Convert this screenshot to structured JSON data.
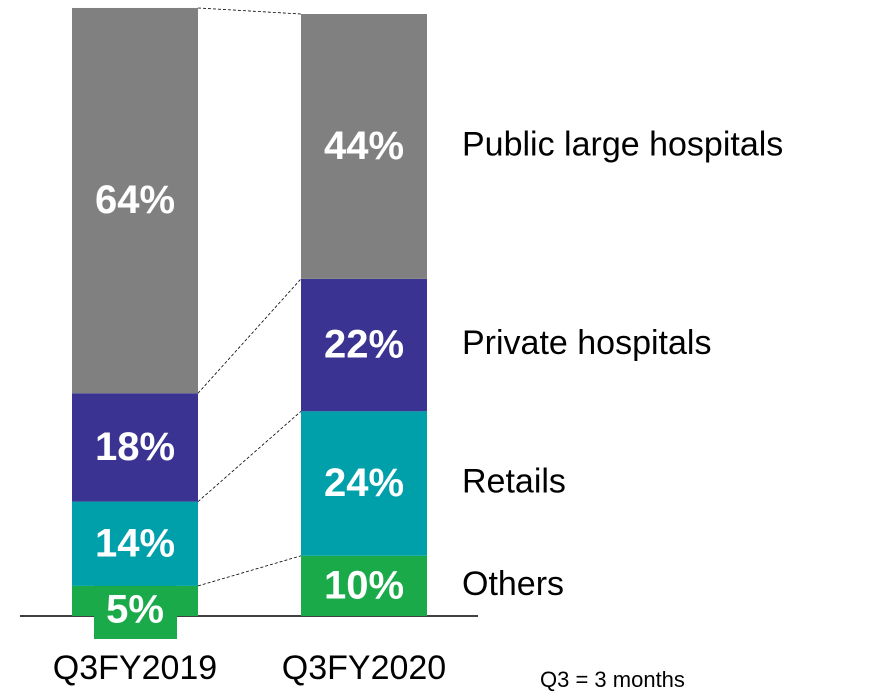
{
  "chart_data": {
    "type": "bar",
    "stacked": true,
    "categories": [
      "Q3FY2019",
      "Q3FY2020"
    ],
    "series": [
      {
        "name": "Others",
        "color": "#1aaa4a",
        "values": [
          5,
          10
        ],
        "value_labels": [
          "5%",
          "10%"
        ]
      },
      {
        "name": "Retails",
        "color": "#00a0aa",
        "values": [
          14,
          24
        ],
        "value_labels": [
          "14%",
          "24%"
        ]
      },
      {
        "name": "Private hospitals",
        "color": "#3a3391",
        "values": [
          18,
          22
        ],
        "value_labels": [
          "18%",
          "22%"
        ]
      },
      {
        "name": "Public large hospitals",
        "color": "#808080",
        "values": [
          64,
          44
        ],
        "value_labels": [
          "64%",
          "44%"
        ]
      }
    ],
    "note": "Q3 = 3 months"
  }
}
